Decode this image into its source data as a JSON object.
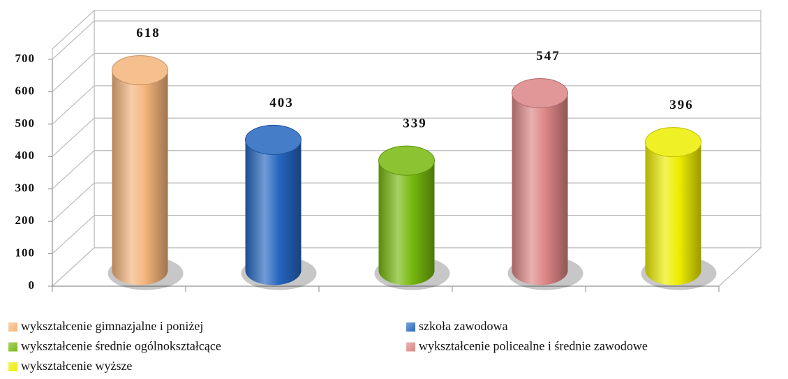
{
  "chart_data": {
    "type": "bar",
    "series": [
      {
        "name": "wykształcenie gimnazjalne i poniżej",
        "color": "#f3b47a",
        "values": [
          618
        ]
      },
      {
        "name": "szkoła zawodowa",
        "color": "#2566c0",
        "values": [
          403
        ]
      },
      {
        "name": "wykształcenie średnie ogólnokształcące",
        "color": "#76b80e",
        "values": [
          339
        ]
      },
      {
        "name": "wykształcenie policealne i średnie zawodowe",
        "color": "#dc8585",
        "values": [
          547
        ]
      },
      {
        "name": "wykształcenie wyższe",
        "color": "#eded00",
        "values": [
          396
        ]
      }
    ],
    "ylim": [
      0,
      700
    ],
    "yticks": [
      0,
      100,
      200,
      300,
      400,
      500,
      600,
      700
    ],
    "grid": true
  }
}
